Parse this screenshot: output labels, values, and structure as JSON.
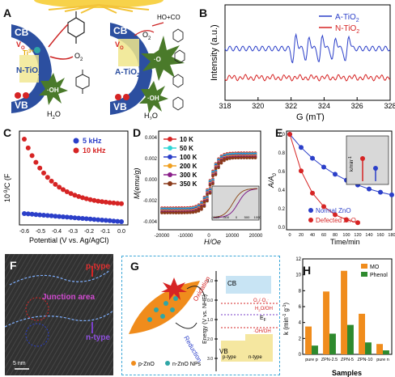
{
  "figure": {
    "panel_labels": [
      "A",
      "B",
      "C",
      "D",
      "E",
      "F",
      "G",
      "H"
    ],
    "colors": {
      "blue": "#2b3fc9",
      "red": "#d62424",
      "orange": "#f08c1c",
      "green": "#2e8a2e",
      "teal": "#2fa6a6"
    }
  },
  "panelA": {
    "left": {
      "cb": "CB",
      "vb": "VB",
      "core": "N-TiO",
      "core_sub": "2",
      "vo": "V",
      "vo_sub": "O",
      "ti": "Ti",
      "ti_sup": "3+",
      "h_sup": "h",
      "o2": "O",
      "o2_sub": "2",
      "oh": "·OH",
      "water": "H",
      "water_sub": "2",
      "water_tail": "O"
    },
    "right": {
      "cb": "CB",
      "vb": "VB",
      "core": "A-TiO",
      "core_sub": "2",
      "vo": "V",
      "vo_sub": "O",
      "products": "H",
      "products_tail": "O+CO",
      "o2": "O",
      "o2_sub": "2",
      "oh": "·OH",
      "water": "H",
      "water_sub": "2",
      "water_tail": "O",
      "superoxide": "·O"
    }
  },
  "panelB": {
    "ylabel": "Intensity (a.u.)",
    "xlabel": "G (mT)",
    "legend": [
      {
        "label": "A-TiO",
        "sub": "2",
        "color": "#2b3fc9"
      },
      {
        "label": "N-TiO",
        "sub": "2",
        "color": "#d62424"
      }
    ],
    "xticks": [
      "318",
      "320",
      "322",
      "324",
      "326",
      "328"
    ]
  },
  "panelC": {
    "ylabel": "10",
    "ylabel_sup": "-9",
    "ylabel_tail": "/C",
    "ylabel_unit": "(F",
    "xlabel": "Potential (V vs. Ag/AgCl)",
    "legend": [
      {
        "label": "5 kHz",
        "color": "#2b3fc9"
      },
      {
        "label": "10 kHz",
        "color": "#d62424"
      }
    ],
    "xticks": [
      "-0.6",
      "-0.5",
      "-0.4",
      "-0.3",
      "-0.2",
      "-0.1",
      "0.0"
    ]
  },
  "panelD": {
    "ylabel": "M(emu/g)",
    "xlabel": "H/Oe",
    "legend": [
      {
        "label": "10 K",
        "color": "#d62424"
      },
      {
        "label": "50 K",
        "color": "#2fd6d6"
      },
      {
        "label": "100 K",
        "color": "#2b3fc9"
      },
      {
        "label": "200 K",
        "color": "#f0a020"
      },
      {
        "label": "300 K",
        "color": "#8a1f8a"
      },
      {
        "label": "350 K",
        "color": "#8a3a1a"
      }
    ],
    "yticks": [
      "0.004",
      "0.002",
      "0.000",
      "-0.002",
      "-0.004"
    ],
    "xticks": [
      "-20000",
      "-10000",
      "0",
      "10000",
      "20000"
    ],
    "inset_xticks": [
      "-1000",
      "-500",
      "0",
      "500",
      "1000"
    ]
  },
  "panelE": {
    "ylabel": "A/A",
    "ylabel_sub": "0",
    "xlabel": "Time/min",
    "legend": [
      {
        "label": "Normal ZnO",
        "color": "#2b3fc9"
      },
      {
        "label": "Defected ZnO",
        "color": "#d62424"
      }
    ],
    "yticks": [
      "1.0",
      "0.8",
      "0.6",
      "0.4",
      "0.2",
      "0.0"
    ],
    "xticks": [
      "0",
      "20",
      "40",
      "60",
      "80",
      "100",
      "120",
      "140",
      "160",
      "180"
    ],
    "inset_ylabel": "k/min",
    "inset_ylabel_sup": "-1"
  },
  "panelF": {
    "p_type": "p-type",
    "n_type": "n-type",
    "junction": "Junction area",
    "scale": "5 nm"
  },
  "panelG": {
    "oxidation": "Oxidation",
    "reduction": "Reduction",
    "ylabel": "Energy (V vs. NHE)",
    "cb": "CB",
    "vb": "VB",
    "ptype": "p-type",
    "ntype": "n-type",
    "ef": "E",
    "ef_sub": "F",
    "o2": "O",
    "o2_sub": "2",
    "o2_tail": "/·O",
    "o2_tail_sub": "2",
    "o2_tail_sup": "-",
    "h2o": "H",
    "h2o_sub": "2",
    "h2o_tail": "O/OH",
    "oh": "·OH/OH",
    "legend_p": "p-ZnO",
    "legend_n": "n-ZnO NPs",
    "yticks": [
      "-1.0",
      "0.0",
      "1.0",
      "2.0",
      "3.0"
    ]
  },
  "panelH": {
    "ylabel": "k (min",
    "ylabel_sup": "-1",
    "ylabel_tail": "g",
    "ylabel_tail_sup": "-1",
    "ylabel_end": ")",
    "xlabel": "Samples",
    "legend": [
      {
        "label": "MO",
        "color": "#f08c1c"
      },
      {
        "label": "Phenol",
        "color": "#2e8a2e"
      }
    ],
    "categories": [
      "pure p",
      "ZPN-2.5",
      "ZPN-5",
      "ZPN-10",
      "pure n"
    ],
    "series": [
      {
        "name": "MO",
        "color": "#f08c1c",
        "values": [
          3.5,
          7.9,
          10.5,
          5.1,
          1.3
        ]
      },
      {
        "name": "Phenol",
        "color": "#2e8a2e",
        "values": [
          1.1,
          2.6,
          3.7,
          1.5,
          0.5
        ]
      }
    ],
    "ylim": [
      0,
      12
    ],
    "yticks": [
      "0",
      "2",
      "4",
      "6",
      "8",
      "10",
      "12"
    ]
  }
}
